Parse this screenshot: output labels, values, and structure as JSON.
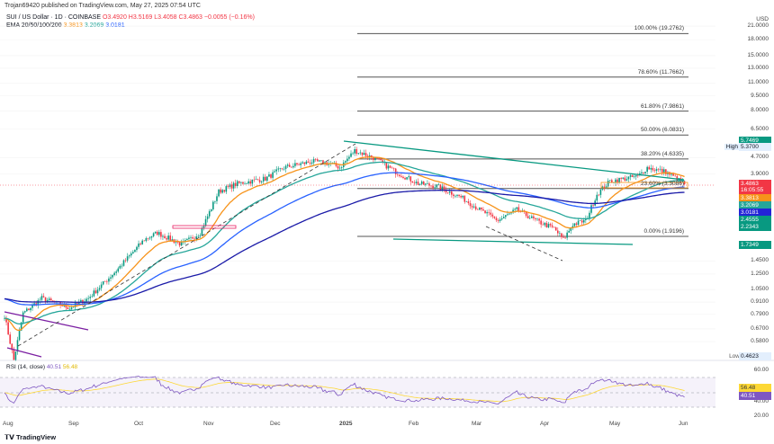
{
  "header": {
    "published": "Trojan69420 published on TradingView.com, May 27, 2025 07:54 UTC",
    "symbol": "SUI / US Dollar · 1D · COINBASE",
    "o": "O3.4920",
    "h": "H3.5169",
    "l": "L3.4058",
    "c": "C3.4863",
    "chg": "−0.0055 (−0.16%)",
    "ema_label": "EMA 20/50/100/200",
    "ema20": "3.3813",
    "ema50": "3.2069",
    "ema100": "3.0181"
  },
  "price_axis": {
    "currency": "USD",
    "ticks": [
      [
        "21.0000",
        21
      ],
      [
        "18.0000",
        18
      ],
      [
        "15.0000",
        15
      ],
      [
        "13.0000",
        13
      ],
      [
        "11.0000",
        11
      ],
      [
        "9.5000",
        9.5
      ],
      [
        "8.0000",
        8
      ],
      [
        "6.5000",
        6.5
      ],
      [
        "4.7000",
        4.7
      ],
      [
        "3.9000",
        3.9
      ],
      [
        "1.4500",
        1.45
      ],
      [
        "1.2500",
        1.25
      ],
      [
        "1.0500",
        1.05
      ],
      [
        "0.9100",
        0.91
      ],
      [
        "0.7900",
        0.79
      ],
      [
        "0.6700",
        0.67
      ],
      [
        "0.5800",
        0.58
      ]
    ]
  },
  "tags": {
    "t1": "5.7469",
    "high_label": "High",
    "high": "5.3700",
    "price": "3.4863",
    "countdown": "16:05:55",
    "ema20": "3.3813",
    "ema50": "3.2069",
    "ema100": "3.0181",
    "t2": "2.4555",
    "t3": "2.2343",
    "t4": "1.7349",
    "low_label": "Low",
    "low": "0.4623"
  },
  "fib": [
    [
      "100.00% (19.2762)",
      19.2762
    ],
    [
      "78.60% (11.7662)",
      11.7662
    ],
    [
      "61.80% (7.9861)",
      7.9861
    ],
    [
      "50.00% (6.0831)",
      6.0831
    ],
    [
      "38.20% (4.6335)",
      4.6335
    ],
    [
      "23.60% (3.3086)",
      3.3086
    ],
    [
      "0.00% (1.9196)",
      1.9196
    ]
  ],
  "rsi": {
    "label": "RSI (14, close)",
    "value": "40.51",
    "ma": "56.48",
    "ticks": [
      "60.00",
      "40.00",
      "20.00"
    ]
  },
  "time_axis": [
    "Aug",
    "Sep",
    "Oct",
    "Nov",
    "Dec",
    "2025",
    "Feb",
    "Mar",
    "Apr",
    "May",
    "Jun"
  ],
  "footer": {
    "brand": "TradingView"
  },
  "colors": {
    "up": "#089981",
    "down": "#f23645",
    "ema20": "#f7931a",
    "ema50": "#26a69a",
    "ema100": "#2962ff",
    "ema200": "#1a1aa8",
    "rsi": "#7e57c2",
    "rsi_ma": "#fdd835"
  },
  "chart_data": {
    "type": "candlestick",
    "keypoints_day_price": [
      [
        0,
        0.78
      ],
      [
        5,
        0.47
      ],
      [
        10,
        0.8
      ],
      [
        20,
        0.95
      ],
      [
        35,
        0.85
      ],
      [
        45,
        0.95
      ],
      [
        60,
        1.3
      ],
      [
        75,
        1.85
      ],
      [
        82,
        2.0
      ],
      [
        95,
        1.75
      ],
      [
        105,
        2.0
      ],
      [
        115,
        3.2
      ],
      [
        125,
        3.5
      ],
      [
        140,
        3.7
      ],
      [
        150,
        4.2
      ],
      [
        165,
        4.5
      ],
      [
        175,
        4.4
      ],
      [
        180,
        4.2
      ],
      [
        188,
        5.1
      ],
      [
        198,
        4.7
      ],
      [
        210,
        4.0
      ],
      [
        222,
        3.5
      ],
      [
        232,
        3.4
      ],
      [
        245,
        3.0
      ],
      [
        255,
        2.6
      ],
      [
        265,
        2.3
      ],
      [
        275,
        2.6
      ],
      [
        285,
        2.3
      ],
      [
        295,
        2.1
      ],
      [
        300,
        1.85
      ],
      [
        305,
        2.2
      ],
      [
        312,
        2.3
      ],
      [
        318,
        3.1
      ],
      [
        325,
        3.6
      ],
      [
        340,
        3.8
      ],
      [
        345,
        4.2
      ],
      [
        355,
        4.0
      ],
      [
        365,
        3.49
      ]
    ]
  }
}
